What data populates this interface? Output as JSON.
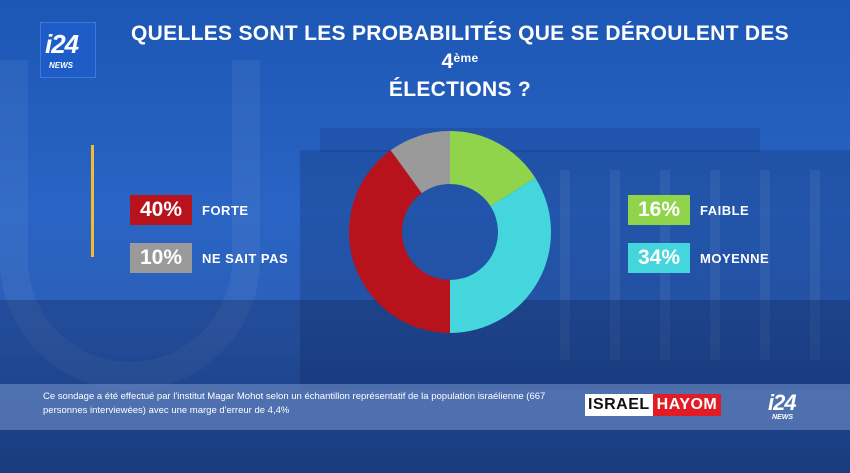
{
  "branding": {
    "logo_main": "i24",
    "logo_sub": "NEWS"
  },
  "header": {
    "title_line1": "QUELLES SONT LES PROBABILITÉS QUE SE DÉROULENT DES 4",
    "title_superscript": "ème",
    "title_line2": "ÉLECTIONS ?"
  },
  "legend": [
    {
      "pct": "40%",
      "label": "FORTE",
      "color": "#b8121d"
    },
    {
      "pct": "10%",
      "label": "NE SAIT PAS",
      "color": "#9a9a9a"
    },
    {
      "pct": "16%",
      "label": "FAIBLE",
      "color": "#8fd44a"
    },
    {
      "pct": "34%",
      "label": "MOYENNE",
      "color": "#44d6dc"
    }
  ],
  "footer": {
    "note": "Ce sondage a été effectué par l'institut Magar Mohot selon un échantillon représentatif de la population israélienne (667 personnes interviewées) avec une marge d'erreur de 4,4%",
    "partner_part1": "ISRAEL",
    "partner_part2": "HAYOM"
  },
  "colors": {
    "accent": "#f2bb30",
    "background": "#2a64c4"
  },
  "chart_data": {
    "type": "pie",
    "title": "QUELLES SONT LES PROBABILITÉS QUE SE DÉROULENT DES 4ème ÉLECTIONS ?",
    "slices": [
      {
        "label": "FAIBLE",
        "value": 16,
        "color": "#8fd44a"
      },
      {
        "label": "MOYENNE",
        "value": 34,
        "color": "#44d6dc"
      },
      {
        "label": "FORTE",
        "value": 40,
        "color": "#b8121d"
      },
      {
        "label": "NE SAIT PAS",
        "value": 10,
        "color": "#9a9a9a"
      }
    ]
  }
}
